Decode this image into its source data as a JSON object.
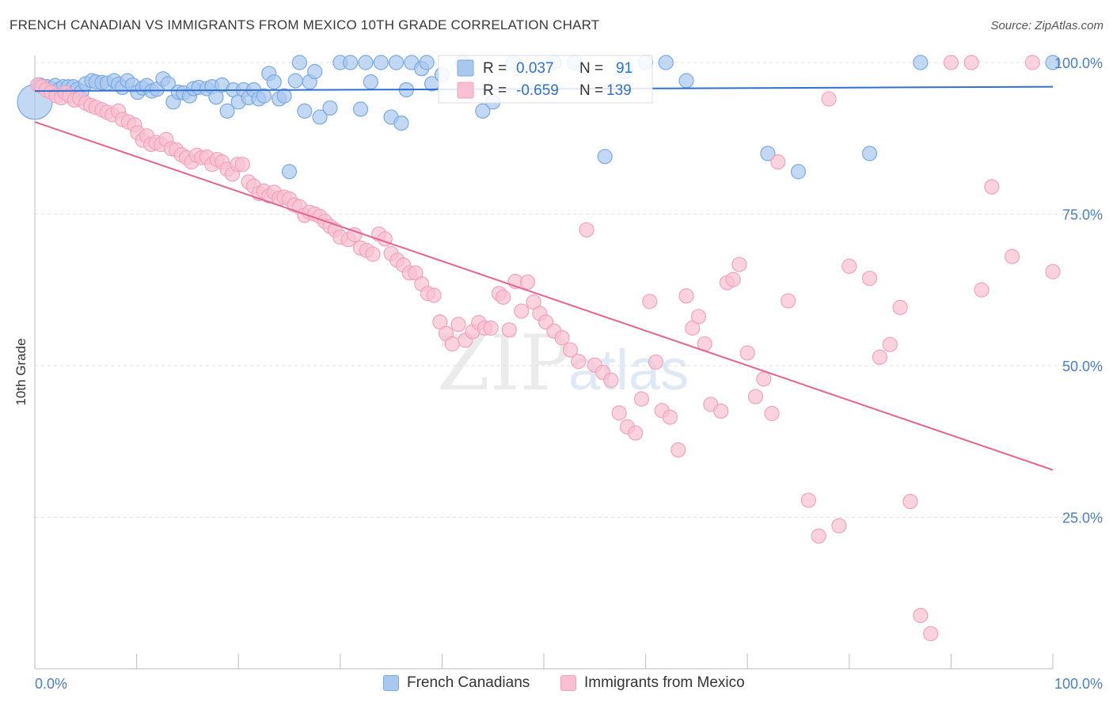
{
  "title": "FRENCH CANADIAN VS IMMIGRANTS FROM MEXICO 10TH GRADE CORRELATION CHART",
  "source": "Source: ZipAtlas.com",
  "watermark": {
    "zip": "ZIP",
    "atlas": "atlas"
  },
  "chart_data": {
    "type": "scatter",
    "ylabel": "10th Grade",
    "xlim": [
      0,
      100
    ],
    "ylim": [
      0,
      100
    ],
    "x_tick_labels": [
      "0.0%",
      "100.0%"
    ],
    "y_ticks": [
      25,
      50,
      75,
      100
    ],
    "y_tick_labels": [
      "25.0%",
      "50.0%",
      "75.0%",
      "100.0%"
    ],
    "grid": true,
    "legend_position": "top-center",
    "legend": [
      {
        "r_label": "R =",
        "r_value": "0.037",
        "n_label": "N =",
        "n_value": "91"
      },
      {
        "r_label": "R =",
        "r_value": "-0.659",
        "n_label": "N =",
        "n_value": "139"
      }
    ],
    "series": [
      {
        "name": "French Canadians",
        "color": "#7aaae0",
        "fill": "#a9c8ee",
        "line_color": "#2f6fcf",
        "trend": {
          "x": [
            0,
            100
          ],
          "y": [
            95.3,
            96.0
          ]
        },
        "points": [
          [
            0,
            93.5
          ],
          [
            0.5,
            96.3
          ],
          [
            1.2,
            96
          ],
          [
            1.6,
            95.7
          ],
          [
            2,
            96.2
          ],
          [
            2.4,
            95.6
          ],
          [
            2.8,
            96
          ],
          [
            3.3,
            96
          ],
          [
            3.8,
            96
          ],
          [
            4.2,
            95.6
          ],
          [
            4.6,
            95.2
          ],
          [
            5,
            96.5
          ],
          [
            5.6,
            97
          ],
          [
            6,
            96.8
          ],
          [
            6.6,
            96.7
          ],
          [
            7.1,
            96.6
          ],
          [
            7.8,
            97
          ],
          [
            8.2,
            96.4
          ],
          [
            8.6,
            95.9
          ],
          [
            9.1,
            97
          ],
          [
            9.6,
            96.3
          ],
          [
            10.1,
            95.1
          ],
          [
            10.6,
            95.8
          ],
          [
            11,
            96.2
          ],
          [
            11.5,
            95.3
          ],
          [
            12,
            95.6
          ],
          [
            12.6,
            97.3
          ],
          [
            13.1,
            96.5
          ],
          [
            13.6,
            93.5
          ],
          [
            14.1,
            95.1
          ],
          [
            14.6,
            95
          ],
          [
            15.2,
            94.5
          ],
          [
            15.6,
            95.7
          ],
          [
            16.1,
            95.9
          ],
          [
            16.9,
            95.7
          ],
          [
            17.4,
            96
          ],
          [
            17.8,
            94.3
          ],
          [
            18.4,
            96.3
          ],
          [
            18.9,
            92
          ],
          [
            19.5,
            95.5
          ],
          [
            20,
            93.5
          ],
          [
            20.5,
            95.5
          ],
          [
            21,
            94.2
          ],
          [
            21.5,
            95.5
          ],
          [
            22,
            94
          ],
          [
            22.5,
            94.5
          ],
          [
            23,
            98.2
          ],
          [
            23.5,
            96.8
          ],
          [
            24,
            94
          ],
          [
            24.5,
            94.5
          ],
          [
            25,
            82
          ],
          [
            25.6,
            97
          ],
          [
            26,
            100
          ],
          [
            26.5,
            92
          ],
          [
            27,
            96.8
          ],
          [
            27.5,
            98.5
          ],
          [
            28,
            91
          ],
          [
            29,
            92.5
          ],
          [
            30,
            100
          ],
          [
            31,
            100
          ],
          [
            32,
            92.3
          ],
          [
            32.5,
            100
          ],
          [
            33,
            96.8
          ],
          [
            34,
            100
          ],
          [
            35,
            91
          ],
          [
            35.5,
            100
          ],
          [
            36,
            90
          ],
          [
            36.5,
            95.5
          ],
          [
            37,
            100
          ],
          [
            38,
            99
          ],
          [
            38.5,
            100
          ],
          [
            39,
            96.5
          ],
          [
            40,
            98
          ],
          [
            42,
            100
          ],
          [
            44,
            92
          ],
          [
            45,
            93.5
          ],
          [
            47,
            100
          ],
          [
            51,
            100
          ],
          [
            53,
            100
          ],
          [
            56,
            84.5
          ],
          [
            58,
            98.5
          ],
          [
            60,
            100
          ],
          [
            62,
            100
          ],
          [
            64,
            97
          ],
          [
            72,
            85
          ],
          [
            75,
            82
          ],
          [
            82,
            85
          ],
          [
            87,
            100
          ],
          [
            100,
            100
          ]
        ]
      },
      {
        "name": "Immigrants from Mexico",
        "color": "#f2a2bd",
        "fill": "#f8c0d2",
        "line_color": "#e8628f",
        "trend": {
          "x": [
            0,
            100
          ],
          "y": [
            90.2,
            32.8
          ]
        },
        "points": [
          [
            0.3,
            96.3
          ],
          [
            0.7,
            96
          ],
          [
            1.1,
            95.5
          ],
          [
            1.6,
            95.1
          ],
          [
            2.1,
            94.5
          ],
          [
            2.6,
            94.2
          ],
          [
            3,
            95
          ],
          [
            3.4,
            94.5
          ],
          [
            3.9,
            93.8
          ],
          [
            4.4,
            94.1
          ],
          [
            5,
            93.3
          ],
          [
            5.5,
            92.9
          ],
          [
            6,
            92.6
          ],
          [
            6.6,
            92.2
          ],
          [
            7.1,
            91.8
          ],
          [
            7.6,
            91.4
          ],
          [
            8.2,
            92
          ],
          [
            8.6,
            90.6
          ],
          [
            9.2,
            90.2
          ],
          [
            9.8,
            89.7
          ],
          [
            10.1,
            88.4
          ],
          [
            10.6,
            87.2
          ],
          [
            11,
            87.9
          ],
          [
            11.4,
            86.5
          ],
          [
            11.9,
            86.8
          ],
          [
            12.4,
            86.5
          ],
          [
            12.9,
            87.3
          ],
          [
            13.4,
            85.8
          ],
          [
            13.9,
            85.6
          ],
          [
            14.4,
            84.8
          ],
          [
            14.9,
            84.3
          ],
          [
            15.4,
            83.6
          ],
          [
            15.9,
            84.7
          ],
          [
            16.4,
            84.3
          ],
          [
            16.9,
            84.4
          ],
          [
            17.4,
            83.2
          ],
          [
            17.9,
            84
          ],
          [
            18.4,
            83.6
          ],
          [
            18.9,
            82.4
          ],
          [
            19.4,
            81.6
          ],
          [
            19.9,
            83.2
          ],
          [
            20.4,
            83.2
          ],
          [
            21,
            80.3
          ],
          [
            21.5,
            79.6
          ],
          [
            22,
            78.4
          ],
          [
            22.5,
            78.8
          ],
          [
            23,
            78
          ],
          [
            23.5,
            78.6
          ],
          [
            24,
            77.6
          ],
          [
            24.5,
            77.8
          ],
          [
            25,
            77.5
          ],
          [
            25.5,
            76.5
          ],
          [
            26,
            76.2
          ],
          [
            26.5,
            74.8
          ],
          [
            27,
            75.3
          ],
          [
            27.5,
            75
          ],
          [
            28,
            74.6
          ],
          [
            28.5,
            73.8
          ],
          [
            29,
            73
          ],
          [
            29.5,
            72.4
          ],
          [
            30,
            71.2
          ],
          [
            30.8,
            70.8
          ],
          [
            31.4,
            71.6
          ],
          [
            32,
            69.4
          ],
          [
            32.6,
            69
          ],
          [
            33.2,
            68.4
          ],
          [
            33.8,
            71.7
          ],
          [
            34.4,
            70.9
          ],
          [
            35,
            68.5
          ],
          [
            35.6,
            67.4
          ],
          [
            36.2,
            66.6
          ],
          [
            36.8,
            65.3
          ],
          [
            37.4,
            65.3
          ],
          [
            38,
            63.5
          ],
          [
            38.6,
            61.9
          ],
          [
            39.2,
            61.6
          ],
          [
            39.8,
            57.2
          ],
          [
            40.4,
            55.3
          ],
          [
            41,
            53.6
          ],
          [
            41.6,
            56.8
          ],
          [
            42.3,
            54.2
          ],
          [
            43,
            55.6
          ],
          [
            43.6,
            57.1
          ],
          [
            44.2,
            56.2
          ],
          [
            44.8,
            56.2
          ],
          [
            45.6,
            61.9
          ],
          [
            46,
            61.3
          ],
          [
            46.6,
            55.9
          ],
          [
            47.2,
            63.9
          ],
          [
            47.8,
            59
          ],
          [
            48.4,
            63.8
          ],
          [
            49,
            60.5
          ],
          [
            49.6,
            58.6
          ],
          [
            50.2,
            57.2
          ],
          [
            51,
            55.7
          ],
          [
            51.8,
            54.6
          ],
          [
            52.6,
            52.6
          ],
          [
            53.4,
            50.7
          ],
          [
            54.2,
            72.4
          ],
          [
            55,
            50.1
          ],
          [
            55.8,
            48.9
          ],
          [
            56.6,
            47.6
          ],
          [
            57.4,
            42.2
          ],
          [
            58.2,
            39.9
          ],
          [
            59,
            38.9
          ],
          [
            59.6,
            44.5
          ],
          [
            60.4,
            60.6
          ],
          [
            61,
            50.6
          ],
          [
            61.6,
            42.6
          ],
          [
            62.4,
            41.5
          ],
          [
            63.2,
            36.1
          ],
          [
            64,
            61.5
          ],
          [
            64.6,
            56.2
          ],
          [
            65.2,
            58.1
          ],
          [
            65.8,
            53.6
          ],
          [
            66.4,
            43.6
          ],
          [
            67.4,
            42.5
          ],
          [
            68,
            63.7
          ],
          [
            68.6,
            64.2
          ],
          [
            69.2,
            66.7
          ],
          [
            70,
            52.1
          ],
          [
            70.8,
            44.9
          ],
          [
            71.6,
            47.8
          ],
          [
            72.4,
            42.1
          ],
          [
            73,
            83.6
          ],
          [
            74,
            60.7
          ],
          [
            76,
            27.8
          ],
          [
            77,
            21.9
          ],
          [
            78,
            94
          ],
          [
            79,
            23.6
          ],
          [
            80,
            66.4
          ],
          [
            82,
            64.4
          ],
          [
            83,
            51.4
          ],
          [
            84,
            53.5
          ],
          [
            85,
            59.6
          ],
          [
            86,
            27.6
          ],
          [
            87,
            8.8
          ],
          [
            88,
            5.8
          ],
          [
            90,
            100
          ],
          [
            92,
            100
          ],
          [
            93,
            62.5
          ],
          [
            94,
            79.5
          ],
          [
            96,
            68
          ],
          [
            98,
            100
          ],
          [
            100,
            65.5
          ]
        ]
      }
    ]
  }
}
